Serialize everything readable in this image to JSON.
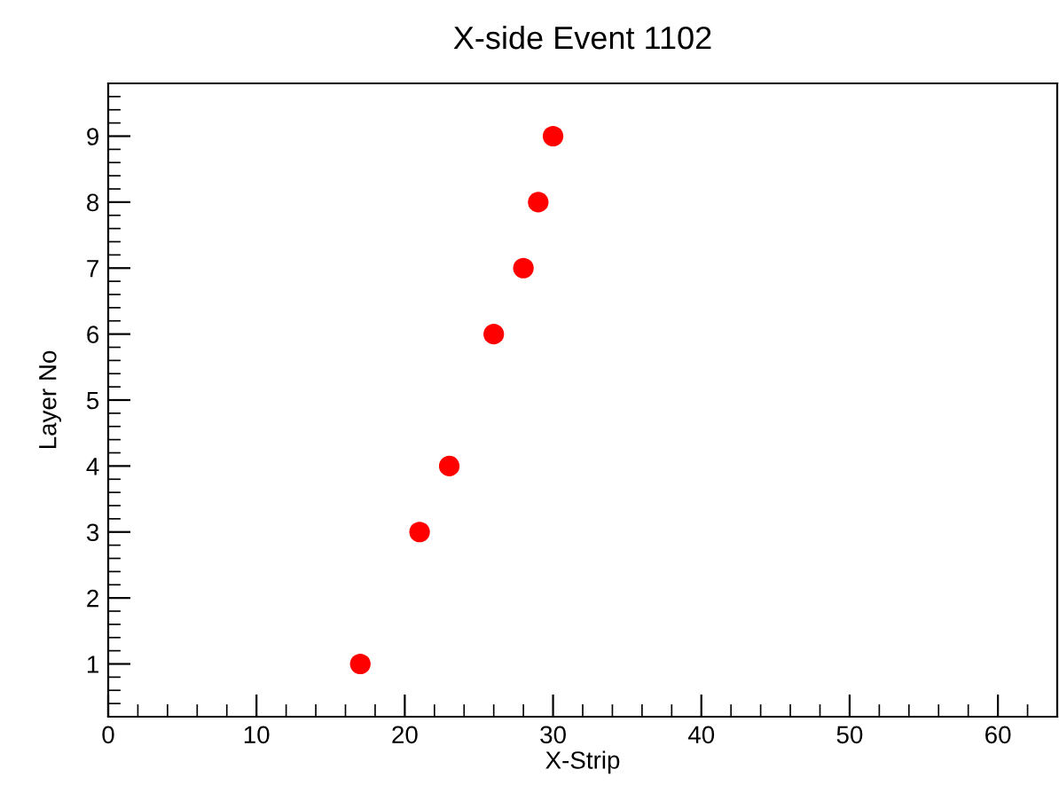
{
  "chart_data": {
    "type": "scatter",
    "title": "X-side Event 1102",
    "xlabel": "X-Strip",
    "ylabel": "Layer No",
    "x": [
      17,
      21,
      23,
      26,
      28,
      29,
      30
    ],
    "series": [
      {
        "color": "#ff0000",
        "values": [
          1,
          3,
          4,
          6,
          7,
          8,
          9
        ]
      }
    ],
    "xlim": [
      0,
      64
    ],
    "xticks": [
      0,
      10,
      20,
      30,
      40,
      50,
      60
    ],
    "ylim": [
      0.2,
      9.8
    ],
    "yticks": [
      1,
      2,
      3,
      4,
      5,
      6,
      7,
      8,
      9
    ],
    "marker": "circle",
    "grid": false,
    "legend": false
  }
}
